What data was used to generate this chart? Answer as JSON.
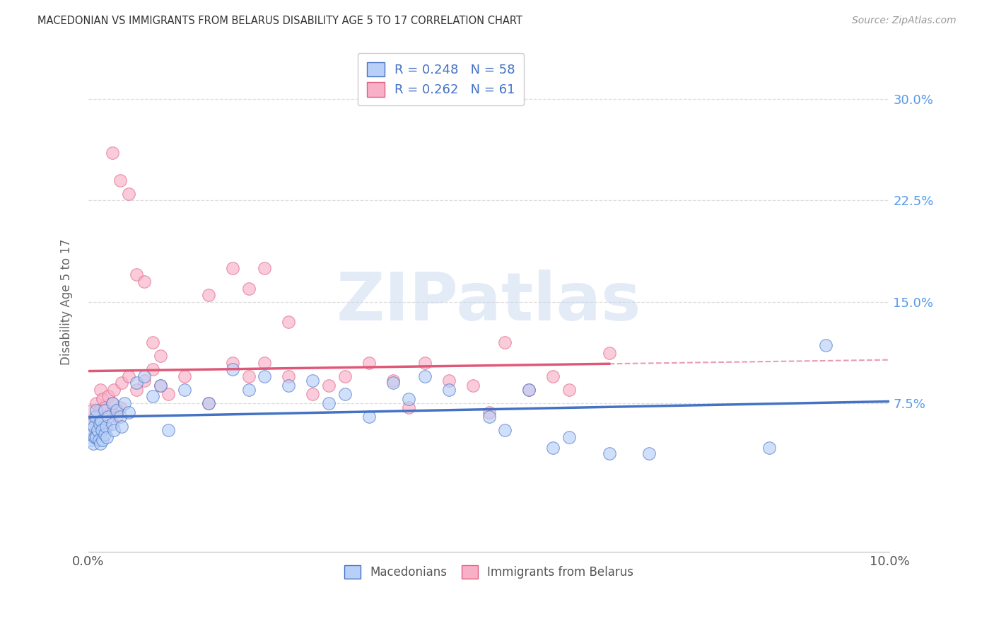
{
  "title": "MACEDONIAN VS IMMIGRANTS FROM BELARUS DISABILITY AGE 5 TO 17 CORRELATION CHART",
  "source": "Source: ZipAtlas.com",
  "ylabel": "Disability Age 5 to 17",
  "xlim": [
    0.0,
    0.1
  ],
  "ylim": [
    -0.035,
    0.335
  ],
  "macedonian_color": "#b8d0f8",
  "belarus_color": "#f8b0c8",
  "macedonian_edge_color": "#4472c4",
  "belarus_edge_color": "#e06080",
  "macedonian_line_color": "#4472c4",
  "belarus_line_color": "#e05878",
  "legend_label_color": "#4472c4",
  "R_macedonian": 0.248,
  "N_macedonian": 58,
  "R_belarus": 0.262,
  "N_belarus": 61,
  "background_color": "#ffffff",
  "grid_color": "#dddddd",
  "right_axis_color": "#5599ee",
  "watermark_text": "ZIPatlas",
  "watermark_color": "#c8d8f0",
  "macedonian_x": [
    0.0002,
    0.0003,
    0.0004,
    0.0005,
    0.0006,
    0.0007,
    0.0008,
    0.0009,
    0.001,
    0.001,
    0.0012,
    0.0013,
    0.0014,
    0.0015,
    0.0016,
    0.0017,
    0.0018,
    0.002,
    0.002,
    0.0022,
    0.0023,
    0.0025,
    0.003,
    0.003,
    0.0032,
    0.0035,
    0.004,
    0.0042,
    0.0045,
    0.005,
    0.006,
    0.007,
    0.008,
    0.009,
    0.01,
    0.012,
    0.015,
    0.018,
    0.02,
    0.022,
    0.025,
    0.028,
    0.03,
    0.032,
    0.035,
    0.038,
    0.04,
    0.042,
    0.045,
    0.05,
    0.052,
    0.055,
    0.058,
    0.06,
    0.065,
    0.07,
    0.085,
    0.092
  ],
  "macedonian_y": [
    0.055,
    0.048,
    0.052,
    0.06,
    0.045,
    0.058,
    0.05,
    0.065,
    0.05,
    0.07,
    0.055,
    0.048,
    0.06,
    0.045,
    0.062,
    0.055,
    0.048,
    0.052,
    0.07,
    0.058,
    0.05,
    0.065,
    0.06,
    0.075,
    0.055,
    0.07,
    0.065,
    0.058,
    0.075,
    0.068,
    0.09,
    0.095,
    0.08,
    0.088,
    0.055,
    0.085,
    0.075,
    0.1,
    0.085,
    0.095,
    0.088,
    0.092,
    0.075,
    0.082,
    0.065,
    0.09,
    0.078,
    0.095,
    0.085,
    0.065,
    0.055,
    0.085,
    0.042,
    0.05,
    0.038,
    0.038,
    0.042,
    0.118
  ],
  "belarus_x": [
    0.0002,
    0.0003,
    0.0005,
    0.0006,
    0.0008,
    0.001,
    0.001,
    0.0012,
    0.0014,
    0.0015,
    0.0017,
    0.0018,
    0.002,
    0.002,
    0.0022,
    0.0025,
    0.003,
    0.003,
    0.0032,
    0.0035,
    0.004,
    0.0042,
    0.005,
    0.006,
    0.007,
    0.008,
    0.009,
    0.01,
    0.012,
    0.015,
    0.018,
    0.02,
    0.022,
    0.025,
    0.028,
    0.03,
    0.032,
    0.035,
    0.038,
    0.04,
    0.042,
    0.045,
    0.048,
    0.05,
    0.052,
    0.055,
    0.058,
    0.06,
    0.065,
    0.015,
    0.018,
    0.025,
    0.02,
    0.022,
    0.003,
    0.004,
    0.005,
    0.006,
    0.007,
    0.008,
    0.009
  ],
  "belarus_y": [
    0.06,
    0.052,
    0.07,
    0.06,
    0.058,
    0.065,
    0.075,
    0.055,
    0.07,
    0.085,
    0.06,
    0.078,
    0.065,
    0.072,
    0.058,
    0.08,
    0.068,
    0.075,
    0.085,
    0.065,
    0.072,
    0.09,
    0.095,
    0.085,
    0.092,
    0.1,
    0.088,
    0.082,
    0.095,
    0.075,
    0.105,
    0.095,
    0.105,
    0.095,
    0.082,
    0.088,
    0.095,
    0.105,
    0.092,
    0.072,
    0.105,
    0.092,
    0.088,
    0.068,
    0.12,
    0.085,
    0.095,
    0.085,
    0.112,
    0.155,
    0.175,
    0.135,
    0.16,
    0.175,
    0.26,
    0.24,
    0.23,
    0.17,
    0.165,
    0.12,
    0.11
  ]
}
